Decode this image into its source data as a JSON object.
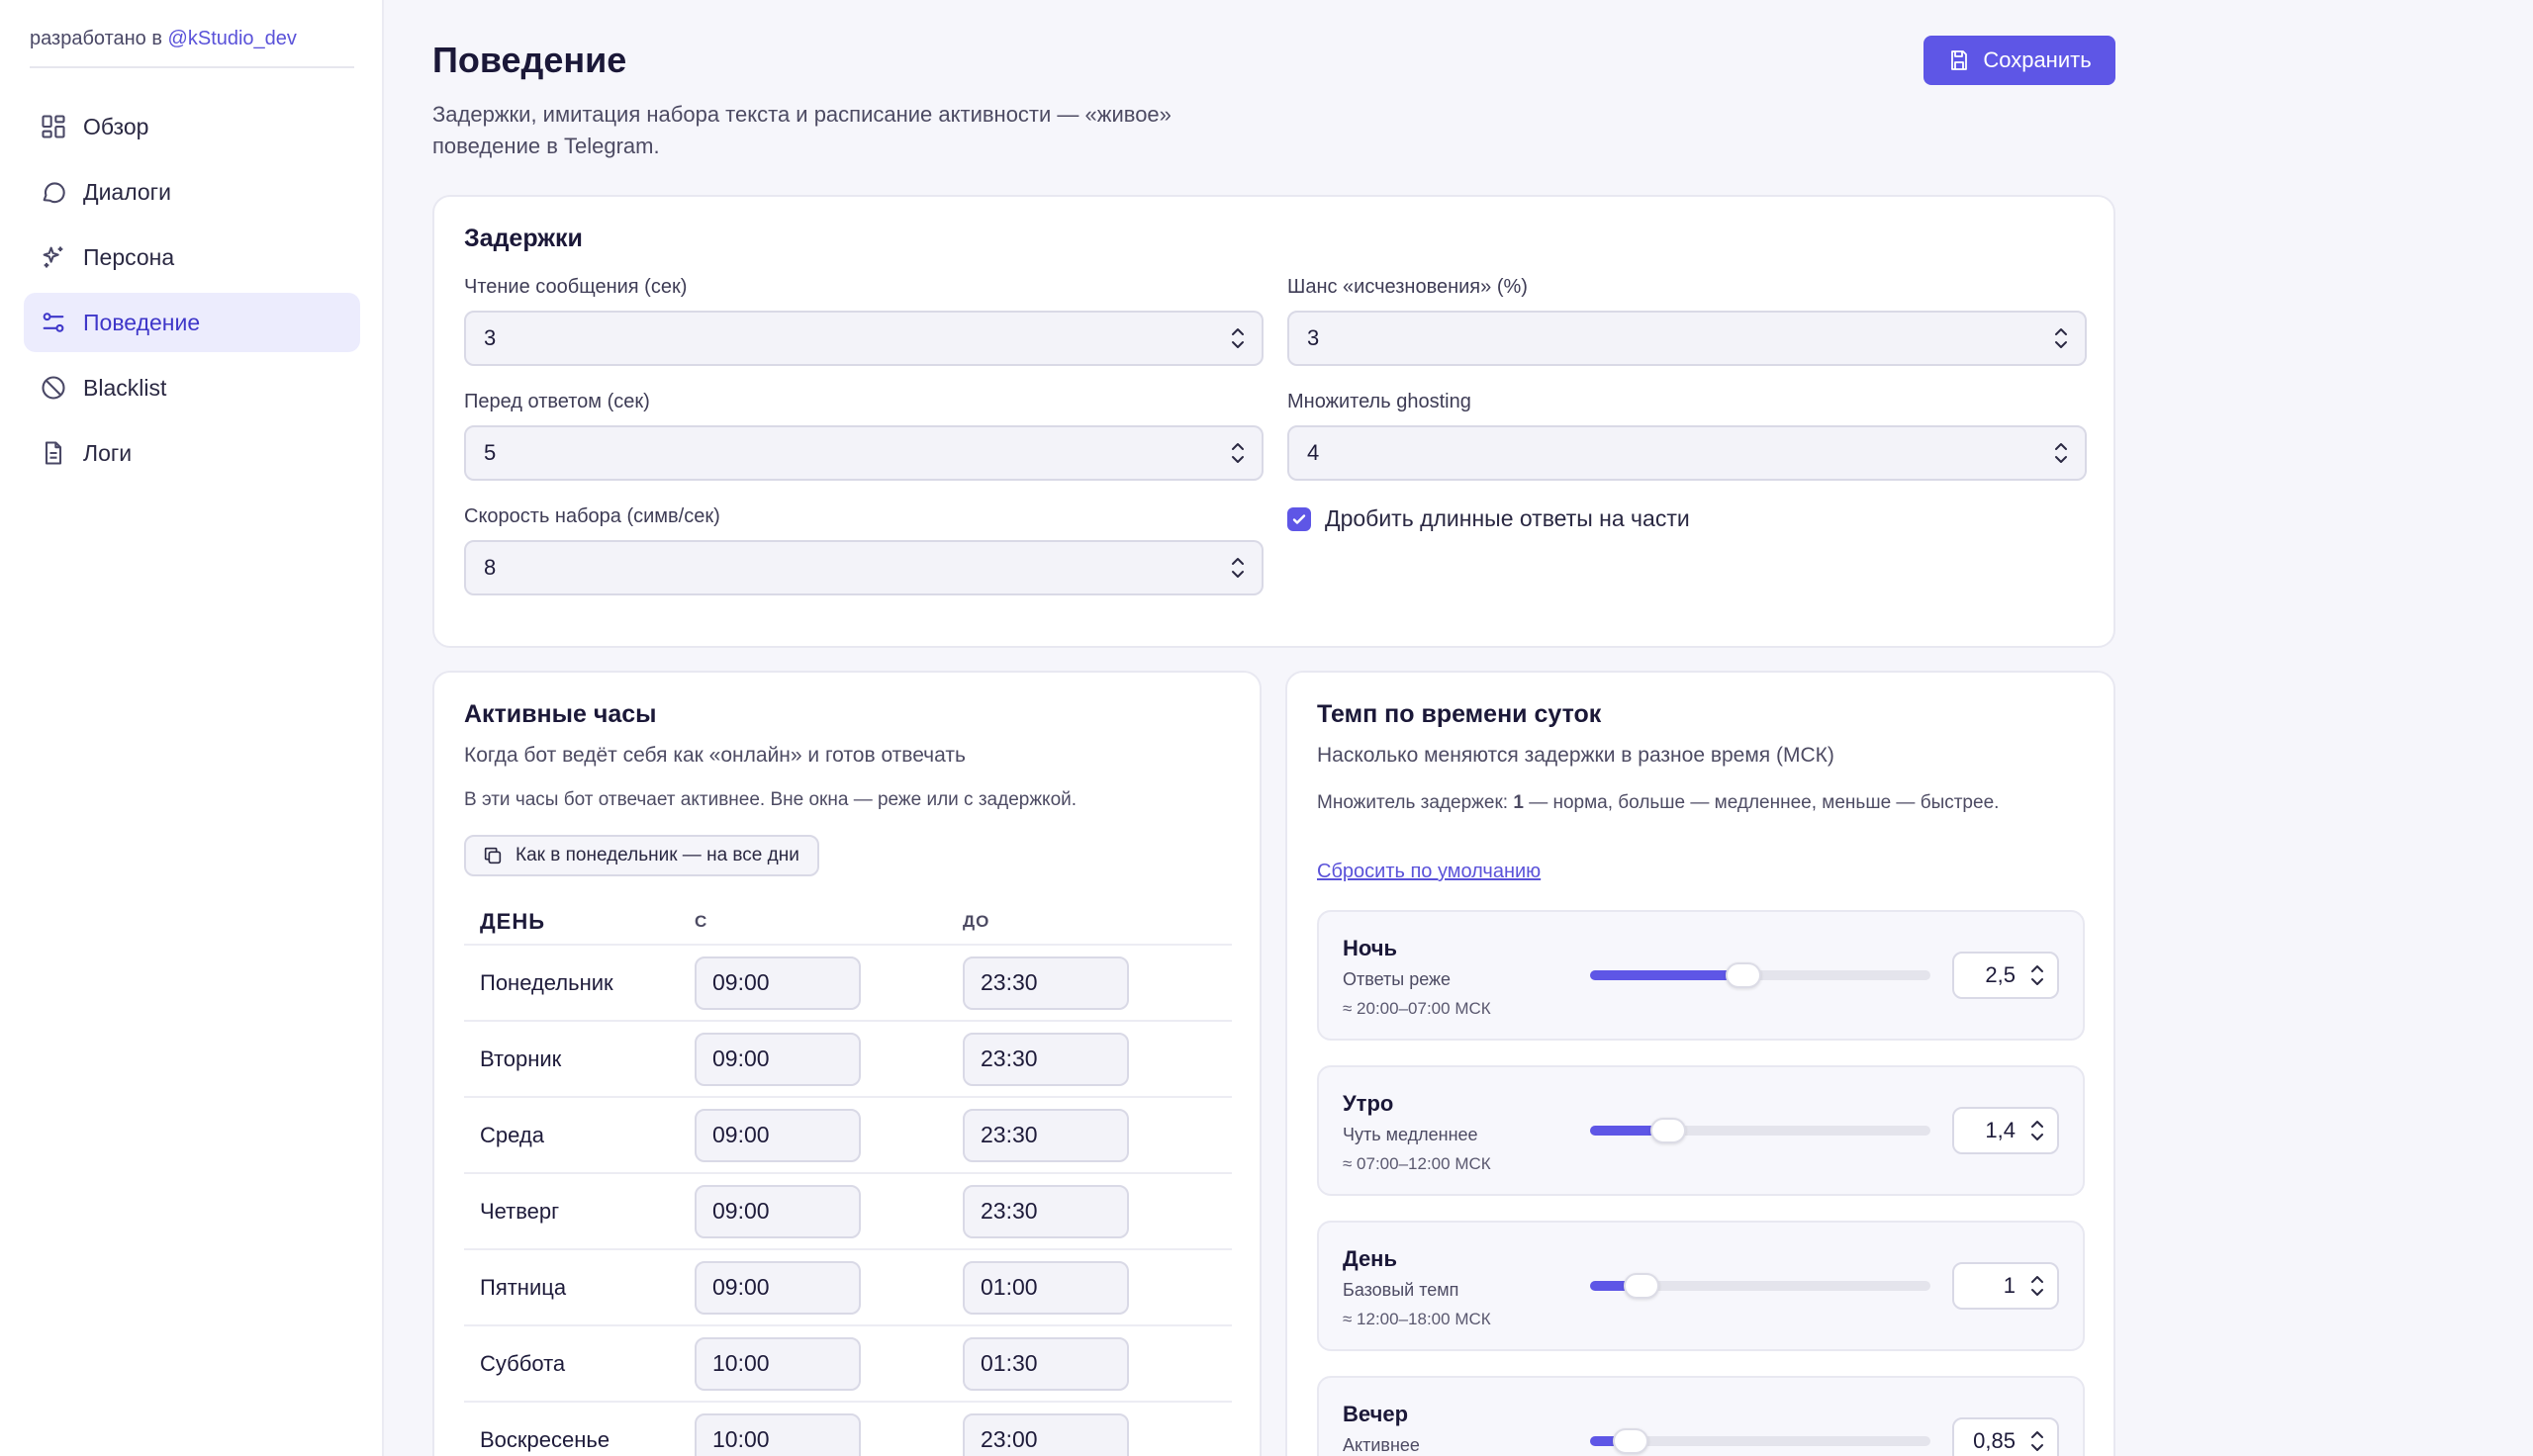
{
  "sidebar": {
    "credit_prefix": "разработано в ",
    "credit_link": "@kStudio_dev",
    "items": [
      {
        "label": "Обзор",
        "icon": "dashboard-icon",
        "active": false
      },
      {
        "label": "Диалоги",
        "icon": "chat-bubble-icon",
        "active": false
      },
      {
        "label": "Персона",
        "icon": "sparkles-icon",
        "active": false
      },
      {
        "label": "Поведение",
        "icon": "sliders-icon",
        "active": true
      },
      {
        "label": "Blacklist",
        "icon": "ban-icon",
        "active": false
      },
      {
        "label": "Логи",
        "icon": "document-icon",
        "active": false
      }
    ]
  },
  "header": {
    "title": "Поведение",
    "subtitle": "Задержки, имитация набора текста и расписание активности — «живое» поведение в Telegram.",
    "save_label": "Сохранить"
  },
  "delays": {
    "title": "Задержки",
    "read_label": "Чтение сообщения (сек)",
    "read_value": "3",
    "before_label": "Перед ответом (сек)",
    "before_value": "5",
    "speed_label": "Скорость набора (симв/сек)",
    "speed_value": "8",
    "ghost_chance_label": "Шанс «исчезновения» (%)",
    "ghost_chance_value": "3",
    "ghost_mult_label": "Множитель ghosting",
    "ghost_mult_value": "4",
    "split_label": "Дробить длинные ответы на части",
    "split_checked": true
  },
  "hours": {
    "title": "Активные часы",
    "desc": "Когда бот ведёт себя как «онлайн» и готов отвечать",
    "note": "В эти часы бот отвечает активнее. Вне окна — реже или с задержкой.",
    "copy_label": "Как в понедельник — на все дни",
    "col_day": "ДЕНЬ",
    "col_from": "С",
    "col_to": "ДО",
    "rows": [
      {
        "day": "Понедельник",
        "from": "09:00",
        "to": "23:30"
      },
      {
        "day": "Вторник",
        "from": "09:00",
        "to": "23:30"
      },
      {
        "day": "Среда",
        "from": "09:00",
        "to": "23:30"
      },
      {
        "day": "Четверг",
        "from": "09:00",
        "to": "23:30"
      },
      {
        "day": "Пятница",
        "from": "09:00",
        "to": "01:00"
      },
      {
        "day": "Суббота",
        "from": "10:00",
        "to": "01:30"
      },
      {
        "day": "Воскресенье",
        "from": "10:00",
        "to": "23:00"
      }
    ]
  },
  "tempo": {
    "title": "Темп по времени суток",
    "desc": "Насколько меняются задержки в разное время (МСК)",
    "note_prefix": "Множитель задержек: ",
    "note_bold": "1",
    "note_suffix": " — норма, больше — медленнее, меньше — быстрее.",
    "reset_label": "Сбросить по умолчанию",
    "periods": [
      {
        "name": "Ночь",
        "desc": "Ответы реже",
        "range": "≈ 20:00–07:00 МСК",
        "value": "2,5",
        "level": 0.45
      },
      {
        "name": "Утро",
        "desc": "Чуть медленнее",
        "range": "≈ 07:00–12:00 МСК",
        "value": "1,4",
        "level": 0.23
      },
      {
        "name": "День",
        "desc": "Базовый темп",
        "range": "≈ 12:00–18:00 МСК",
        "value": "1",
        "level": 0.15
      },
      {
        "name": "Вечер",
        "desc": "Активнее",
        "range": "",
        "value": "0,85",
        "level": 0.12
      }
    ]
  }
}
